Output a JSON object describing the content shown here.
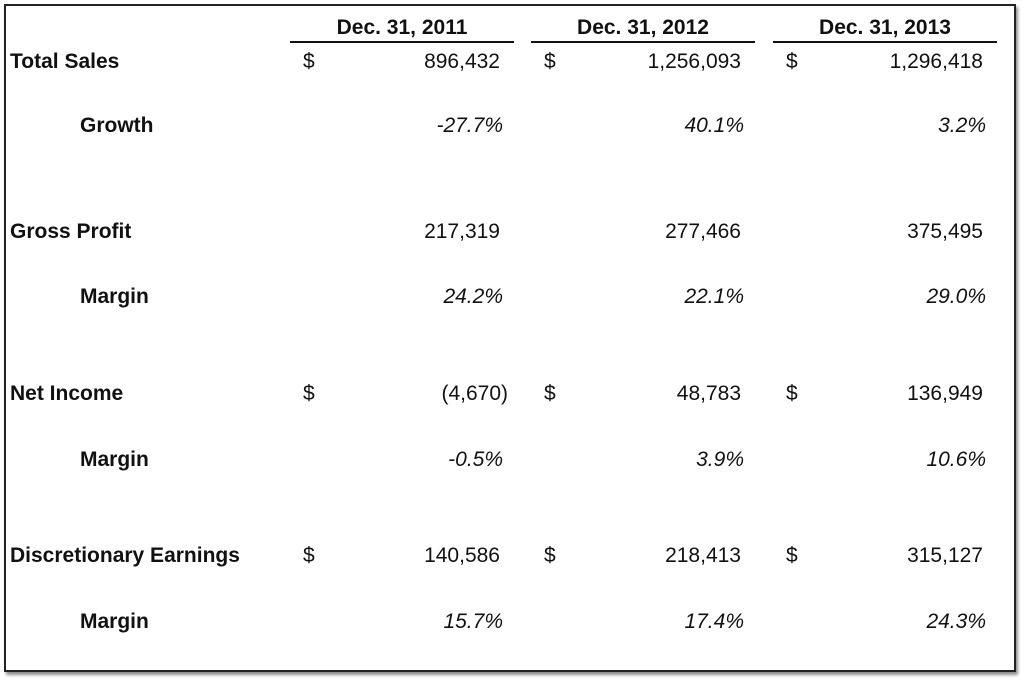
{
  "table": {
    "columns": [
      "Dec. 31, 2011",
      "Dec. 31, 2012",
      "Dec. 31, 2013"
    ],
    "groups": [
      {
        "label": "Total Sales",
        "cells": [
          {
            "currency": "$",
            "value": "896,432"
          },
          {
            "currency": "$",
            "value": "1,256,093"
          },
          {
            "currency": "$",
            "value": "1,296,418"
          }
        ],
        "sub": {
          "label": "Growth",
          "cells": [
            "-27.7%",
            "40.1%",
            "3.2%"
          ]
        }
      },
      {
        "label": "Gross Profit",
        "cells": [
          {
            "value": "217,319"
          },
          {
            "value": "277,466"
          },
          {
            "value": "375,495"
          }
        ],
        "sub": {
          "label": "Margin",
          "cells": [
            "24.2%",
            "22.1%",
            "29.0%"
          ]
        }
      },
      {
        "label": "Net Income",
        "cells": [
          {
            "currency": "$",
            "value": "(4,670)"
          },
          {
            "currency": "$",
            "value": "48,783"
          },
          {
            "currency": "$",
            "value": "136,949"
          }
        ],
        "sub": {
          "label": "Margin",
          "cells": [
            "-0.5%",
            "3.9%",
            "10.6%"
          ]
        }
      },
      {
        "label": "Discretionary Earnings",
        "cells": [
          {
            "currency": "$",
            "value": "140,586"
          },
          {
            "currency": "$",
            "value": "218,413"
          },
          {
            "currency": "$",
            "value": "315,127"
          }
        ],
        "sub": {
          "label": "Margin",
          "cells": [
            "15.7%",
            "17.4%",
            "24.3%"
          ]
        }
      }
    ]
  }
}
